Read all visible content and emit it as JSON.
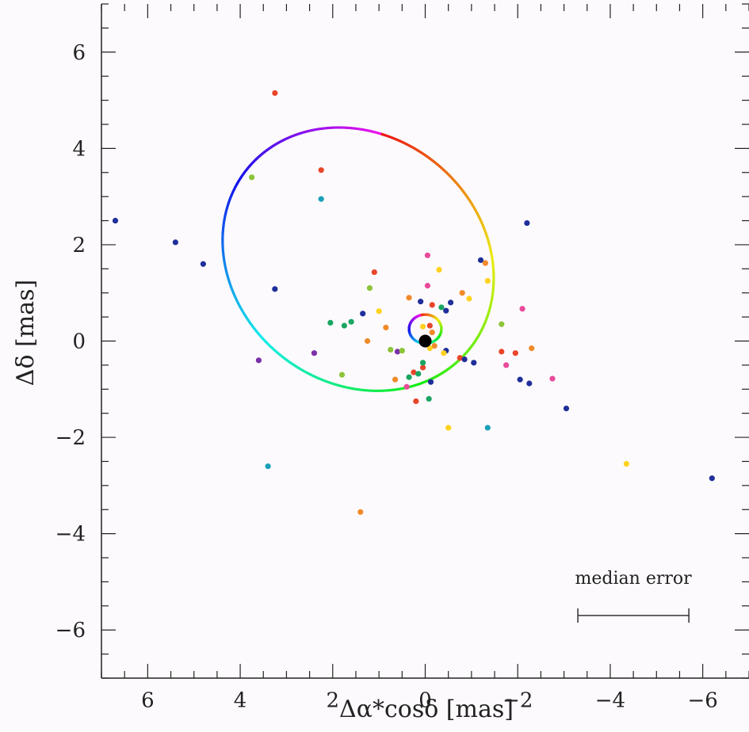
{
  "chart_data": {
    "type": "scatter",
    "xlabel": "Δα*cosδ [mas]",
    "ylabel": "Δδ [mas]",
    "xlim": [
      7,
      -7
    ],
    "ylim": [
      -7,
      7
    ],
    "x_ticks": [
      6,
      4,
      2,
      0,
      -2,
      -4,
      -6
    ],
    "y_ticks": [
      6,
      4,
      2,
      0,
      -2,
      -4,
      -6
    ],
    "x_tick_labels": [
      "6",
      "4",
      "2",
      "0",
      "−2",
      "−4",
      "−6"
    ],
    "y_tick_labels": [
      "6",
      "4",
      "2",
      "0",
      "−2",
      "−4",
      "−6"
    ],
    "grid": false,
    "annotation": {
      "text": "median error",
      "error_bar_x": [
        -3.3,
        -5.7
      ],
      "error_bar_y": -5.7
    },
    "center_marker": {
      "x": 0,
      "y": 0,
      "color": "#000000"
    },
    "orbits": [
      {
        "name": "",
        "center": [
          1.45,
          1.7
        ],
        "semi_axes": [
          3.05,
          2.6
        ],
        "rotation_deg": 32,
        "colored_by": "rainbow"
      },
      {
        "name": "",
        "center": [
          0.0,
          0.25
        ],
        "semi_axes": [
          0.35,
          0.3
        ],
        "rotation_deg": 0,
        "colored_by": "rainbow"
      }
    ],
    "points": [
      {
        "x": 6.7,
        "y": 2.5,
        "color": "#1f2f9a"
      },
      {
        "x": 5.4,
        "y": 2.05,
        "color": "#1f2f9a"
      },
      {
        "x": 4.8,
        "y": 1.6,
        "color": "#1f2f9a"
      },
      {
        "x": 3.25,
        "y": 5.15,
        "color": "#e8462a"
      },
      {
        "x": 3.75,
        "y": 3.4,
        "color": "#8cc43a"
      },
      {
        "x": 2.25,
        "y": 3.55,
        "color": "#e8462a"
      },
      {
        "x": 2.25,
        "y": 2.95,
        "color": "#1aa0b8"
      },
      {
        "x": 3.25,
        "y": 1.08,
        "color": "#1f2f9a"
      },
      {
        "x": 3.6,
        "y": -0.4,
        "color": "#7b2fa8"
      },
      {
        "x": 2.4,
        "y": -0.25,
        "color": "#7b2fa8"
      },
      {
        "x": 3.4,
        "y": -2.6,
        "color": "#1aa0b8"
      },
      {
        "x": 1.4,
        "y": -3.55,
        "color": "#f08a2a"
      },
      {
        "x": 1.8,
        "y": -0.7,
        "color": "#8cc43a"
      },
      {
        "x": 2.05,
        "y": 0.38,
        "color": "#1aa560"
      },
      {
        "x": 1.75,
        "y": 0.32,
        "color": "#1aa560"
      },
      {
        "x": 1.6,
        "y": 0.4,
        "color": "#1aa560"
      },
      {
        "x": 1.35,
        "y": 0.57,
        "color": "#1f2f9a"
      },
      {
        "x": 1.2,
        "y": 1.1,
        "color": "#8cc43a"
      },
      {
        "x": 1.1,
        "y": 1.43,
        "color": "#e8462a"
      },
      {
        "x": 1.0,
        "y": 0.62,
        "color": "#ffd21f"
      },
      {
        "x": 1.25,
        "y": 0.0,
        "color": "#f08a2a"
      },
      {
        "x": 0.85,
        "y": 0.28,
        "color": "#f08a2a"
      },
      {
        "x": 0.75,
        "y": -0.18,
        "color": "#8cc43a"
      },
      {
        "x": 0.6,
        "y": -0.22,
        "color": "#7b2fa8"
      },
      {
        "x": 0.5,
        "y": -0.2,
        "color": "#8cc43a"
      },
      {
        "x": 0.65,
        "y": -0.8,
        "color": "#f08a2a"
      },
      {
        "x": 0.4,
        "y": -0.95,
        "color": "#e84a9a"
      },
      {
        "x": 0.35,
        "y": -0.75,
        "color": "#1aa560"
      },
      {
        "x": 0.25,
        "y": -0.65,
        "color": "#e8462a"
      },
      {
        "x": 0.15,
        "y": -0.68,
        "color": "#1aa560"
      },
      {
        "x": 0.05,
        "y": -0.55,
        "color": "#e8462a"
      },
      {
        "x": 0.05,
        "y": -0.45,
        "color": "#1aa560"
      },
      {
        "x": 0.2,
        "y": -1.25,
        "color": "#e8462a"
      },
      {
        "x": -0.08,
        "y": -1.2,
        "color": "#1aa560"
      },
      {
        "x": -0.12,
        "y": -0.85,
        "color": "#1f2f9a"
      },
      {
        "x": 0.35,
        "y": 0.9,
        "color": "#f08a2a"
      },
      {
        "x": 0.1,
        "y": 0.82,
        "color": "#1f2f9a"
      },
      {
        "x": -0.05,
        "y": 1.15,
        "color": "#e84a9a"
      },
      {
        "x": -0.05,
        "y": 1.78,
        "color": "#e84a9a"
      },
      {
        "x": -0.3,
        "y": 1.48,
        "color": "#ffd21f"
      },
      {
        "x": -0.15,
        "y": 0.75,
        "color": "#e8462a"
      },
      {
        "x": -0.35,
        "y": 0.7,
        "color": "#1aa560"
      },
      {
        "x": -0.45,
        "y": 0.63,
        "color": "#1f2f9a"
      },
      {
        "x": -0.55,
        "y": 0.8,
        "color": "#1f2f9a"
      },
      {
        "x": -0.8,
        "y": 1.0,
        "color": "#f08a2a"
      },
      {
        "x": -0.95,
        "y": 0.88,
        "color": "#ffd21f"
      },
      {
        "x": 0.05,
        "y": 0.3,
        "color": "#ffd21f"
      },
      {
        "x": -0.1,
        "y": 0.32,
        "color": "#e8462a"
      },
      {
        "x": -0.15,
        "y": 0.18,
        "color": "#f08a2a"
      },
      {
        "x": -0.2,
        "y": -0.1,
        "color": "#f08a2a"
      },
      {
        "x": -0.1,
        "y": -0.15,
        "color": "#ffd21f"
      },
      {
        "x": 0.0,
        "y": 0.05,
        "color": "#1aa560"
      },
      {
        "x": -0.45,
        "y": -0.2,
        "color": "#1f2f9a"
      },
      {
        "x": -0.4,
        "y": -0.25,
        "color": "#ffd21f"
      },
      {
        "x": -0.5,
        "y": -1.8,
        "color": "#ffd21f"
      },
      {
        "x": -0.75,
        "y": -0.35,
        "color": "#e8462a"
      },
      {
        "x": -0.85,
        "y": -0.38,
        "color": "#1f2f9a"
      },
      {
        "x": -1.05,
        "y": -0.45,
        "color": "#1f2f9a"
      },
      {
        "x": -1.2,
        "y": 1.68,
        "color": "#1f2f9a"
      },
      {
        "x": -1.3,
        "y": 1.62,
        "color": "#f08a2a"
      },
      {
        "x": -1.35,
        "y": 1.25,
        "color": "#ffd21f"
      },
      {
        "x": -1.35,
        "y": -1.8,
        "color": "#1aa0b8"
      },
      {
        "x": -1.65,
        "y": 0.35,
        "color": "#8cc43a"
      },
      {
        "x": -1.65,
        "y": -0.22,
        "color": "#e8462a"
      },
      {
        "x": -1.75,
        "y": -0.5,
        "color": "#e84a9a"
      },
      {
        "x": -1.95,
        "y": -0.25,
        "color": "#e8462a"
      },
      {
        "x": -2.05,
        "y": -0.8,
        "color": "#1f2f9a"
      },
      {
        "x": -2.1,
        "y": 0.67,
        "color": "#e84a9a"
      },
      {
        "x": -2.2,
        "y": 2.45,
        "color": "#1f2f9a"
      },
      {
        "x": -2.25,
        "y": -0.88,
        "color": "#1f2f9a"
      },
      {
        "x": -2.3,
        "y": -0.15,
        "color": "#f08a2a"
      },
      {
        "x": -2.75,
        "y": -0.78,
        "color": "#e84a9a"
      },
      {
        "x": -3.05,
        "y": -1.4,
        "color": "#1f2f9a"
      },
      {
        "x": -4.35,
        "y": -2.55,
        "color": "#ffd21f"
      },
      {
        "x": -6.2,
        "y": -2.85,
        "color": "#1f2f9a"
      }
    ]
  }
}
